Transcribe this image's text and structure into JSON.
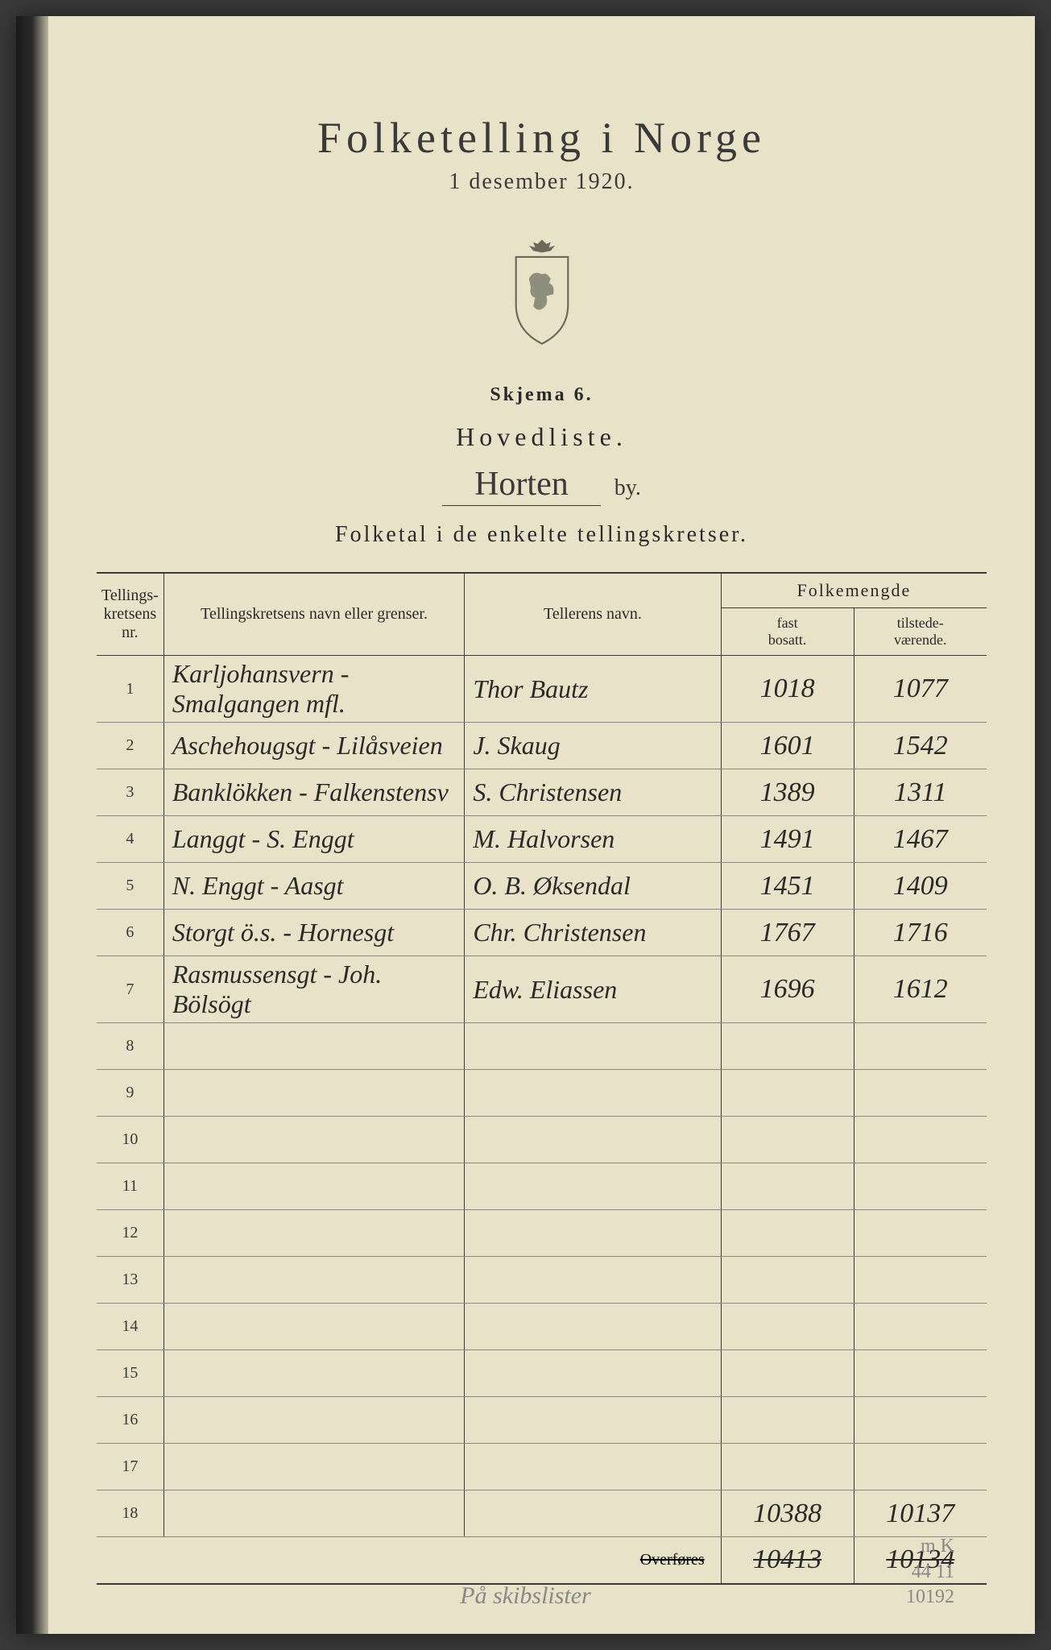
{
  "header": {
    "title": "Folketelling i Norge",
    "date": "1 desember 1920.",
    "skjema": "Skjema 6.",
    "hovedliste": "Hovedliste.",
    "city": "Horten",
    "by_suffix": "by.",
    "subtitle": "Folketal i de enkelte tellingskretser."
  },
  "table": {
    "headers": {
      "nr": "Tellings-\nkretsens\nnr.",
      "name": "Tellingskretsens navn eller grenser.",
      "teller": "Tellerens navn.",
      "folkemengde": "Folkemengde",
      "fast": "fast\nbosatt.",
      "tilstede": "tilstede-\nværende."
    },
    "rows": [
      {
        "nr": "1",
        "name": "Karljohansvern - Smalgangen mfl.",
        "teller": "Thor Bautz",
        "fast": "1018",
        "til": "1077"
      },
      {
        "nr": "2",
        "name": "Aschehougsgt - Lilåsveien",
        "teller": "J. Skaug",
        "fast": "1601",
        "til": "1542"
      },
      {
        "nr": "3",
        "name": "Banklökken - Falkenstensv",
        "teller": "S. Christensen",
        "fast": "1389",
        "til": "1311"
      },
      {
        "nr": "4",
        "name": "Langgt - S. Enggt",
        "teller": "M. Halvorsen",
        "fast": "1491",
        "til": "1467"
      },
      {
        "nr": "5",
        "name": "N. Enggt - Aasgt",
        "teller": "O. B. Øksendal",
        "fast": "1451",
        "til": "1409"
      },
      {
        "nr": "6",
        "name": "Storgt ö.s. - Hornesgt",
        "teller": "Chr. Christensen",
        "fast": "1767",
        "til": "1716"
      },
      {
        "nr": "7",
        "name": "Rasmussensgt - Joh. Bölsögt",
        "teller": "Edw. Eliassen",
        "fast": "1696",
        "til": "1612"
      },
      {
        "nr": "8",
        "name": "",
        "teller": "",
        "fast": "",
        "til": ""
      },
      {
        "nr": "9",
        "name": "",
        "teller": "",
        "fast": "",
        "til": ""
      },
      {
        "nr": "10",
        "name": "",
        "teller": "",
        "fast": "",
        "til": ""
      },
      {
        "nr": "11",
        "name": "",
        "teller": "",
        "fast": "",
        "til": ""
      },
      {
        "nr": "12",
        "name": "",
        "teller": "",
        "fast": "",
        "til": ""
      },
      {
        "nr": "13",
        "name": "",
        "teller": "",
        "fast": "",
        "til": ""
      },
      {
        "nr": "14",
        "name": "",
        "teller": "",
        "fast": "",
        "til": ""
      },
      {
        "nr": "15",
        "name": "",
        "teller": "",
        "fast": "",
        "til": ""
      },
      {
        "nr": "16",
        "name": "",
        "teller": "",
        "fast": "",
        "til": ""
      },
      {
        "nr": "17",
        "name": "",
        "teller": "",
        "fast": "",
        "til": ""
      },
      {
        "nr": "18",
        "name": "",
        "teller": "",
        "fast": "10388",
        "til": "10137"
      }
    ],
    "overfores_label": "Overføres",
    "overfores": {
      "fast": "10413",
      "til": "10134"
    }
  },
  "footer": {
    "note": "På skibslister",
    "right": "m   K\n44   11\n10192"
  },
  "colors": {
    "paper": "#e8e2c8",
    "ink": "#2a2a2a",
    "border": "#3a3a3a",
    "pencil": "#888888"
  }
}
